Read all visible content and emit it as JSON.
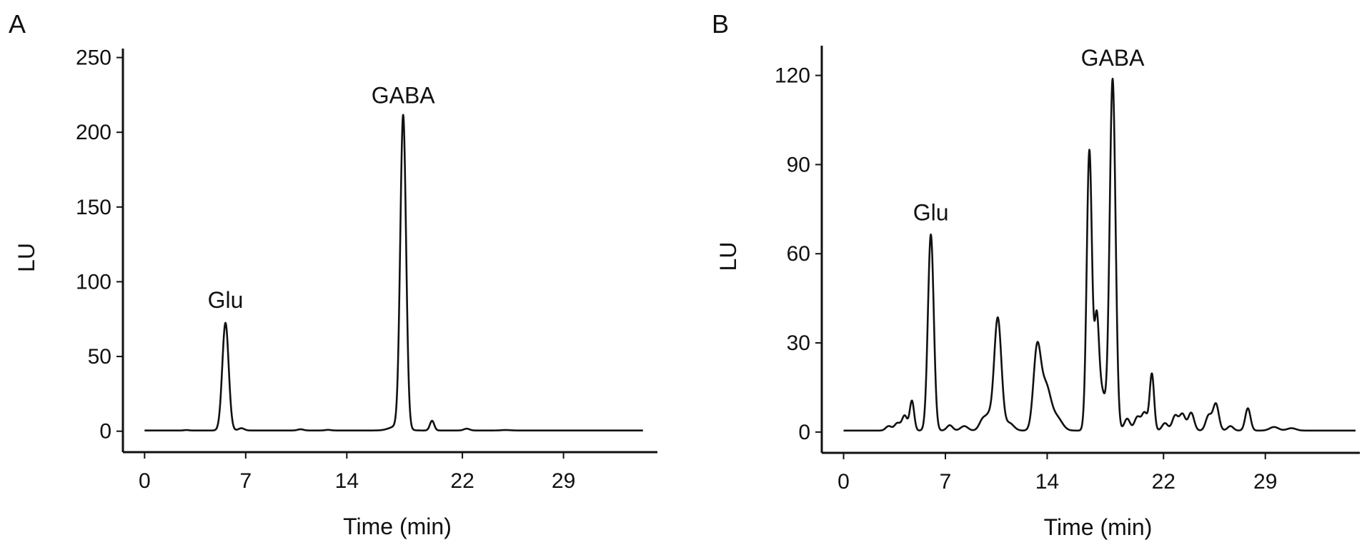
{
  "chart_data": [
    {
      "type": "line",
      "panel_label": "A",
      "xlabel": "Time (min)",
      "ylabel": "LU",
      "xlim": [
        -1.5,
        35.5
      ],
      "ylim": [
        -14,
        256
      ],
      "xticks": [
        0,
        7,
        14,
        22,
        29
      ],
      "yticks": [
        0,
        50,
        100,
        150,
        200,
        250
      ],
      "grid": false,
      "baseline": 0.5,
      "x_end": 34.5,
      "peaks": [
        {
          "t": 2.9,
          "h": 0.3,
          "w": 0.15
        },
        {
          "t": 5.6,
          "h": 72,
          "w": 0.22
        },
        {
          "t": 6.7,
          "h": 1.5,
          "w": 0.2
        },
        {
          "t": 10.8,
          "h": 0.8,
          "w": 0.2
        },
        {
          "t": 12.7,
          "h": 0.4,
          "w": 0.2
        },
        {
          "t": 17.5,
          "h": 3,
          "w": 0.5
        },
        {
          "t": 17.9,
          "h": 209,
          "w": 0.2
        },
        {
          "t": 19.9,
          "h": 6.5,
          "w": 0.15
        },
        {
          "t": 22.3,
          "h": 1.2,
          "w": 0.2
        },
        {
          "t": 25.0,
          "h": 0.3,
          "w": 0.3
        }
      ],
      "annotations": [
        {
          "text": "Glu",
          "x": 5.6,
          "y": 72
        },
        {
          "text": "GABA",
          "x": 17.9,
          "y": 209
        }
      ]
    },
    {
      "type": "line",
      "panel_label": "B",
      "xlabel": "Time (min)",
      "ylabel": "LU",
      "xlim": [
        -1.5,
        35.5
      ],
      "ylim": [
        -7,
        130
      ],
      "xticks": [
        0,
        7,
        14,
        22,
        29
      ],
      "yticks": [
        0,
        30,
        60,
        90,
        120
      ],
      "grid": false,
      "baseline": 0.5,
      "x_end": 35.2,
      "peaks": [
        {
          "t": 3.1,
          "h": 1.5,
          "w": 0.2
        },
        {
          "t": 3.7,
          "h": 2.5,
          "w": 0.2
        },
        {
          "t": 4.2,
          "h": 5,
          "w": 0.18
        },
        {
          "t": 4.7,
          "h": 10,
          "w": 0.15
        },
        {
          "t": 6.0,
          "h": 66,
          "w": 0.2
        },
        {
          "t": 7.3,
          "h": 1.8,
          "w": 0.2
        },
        {
          "t": 8.3,
          "h": 1.5,
          "w": 0.25
        },
        {
          "t": 9.6,
          "h": 4,
          "w": 0.25
        },
        {
          "t": 10.0,
          "h": 3.5,
          "w": 0.2
        },
        {
          "t": 10.6,
          "h": 38,
          "w": 0.25
        },
        {
          "t": 11.4,
          "h": 2.5,
          "w": 0.3
        },
        {
          "t": 13.3,
          "h": 26,
          "w": 0.25
        },
        {
          "t": 13.9,
          "h": 15,
          "w": 0.35
        },
        {
          "t": 14.7,
          "h": 4,
          "w": 0.35
        },
        {
          "t": 16.9,
          "h": 94,
          "w": 0.18
        },
        {
          "t": 17.4,
          "h": 30,
          "w": 0.15
        },
        {
          "t": 17.7,
          "h": 14,
          "w": 0.3
        },
        {
          "t": 18.5,
          "h": 118,
          "w": 0.2
        },
        {
          "t": 19.5,
          "h": 4,
          "w": 0.2
        },
        {
          "t": 20.2,
          "h": 4.5,
          "w": 0.2
        },
        {
          "t": 20.7,
          "h": 6,
          "w": 0.2
        },
        {
          "t": 21.2,
          "h": 19,
          "w": 0.15
        },
        {
          "t": 22.1,
          "h": 2.5,
          "w": 0.2
        },
        {
          "t": 22.8,
          "h": 5,
          "w": 0.2
        },
        {
          "t": 23.3,
          "h": 5.5,
          "w": 0.2
        },
        {
          "t": 23.9,
          "h": 6,
          "w": 0.2
        },
        {
          "t": 25.1,
          "h": 5,
          "w": 0.2
        },
        {
          "t": 25.6,
          "h": 9,
          "w": 0.2
        },
        {
          "t": 26.6,
          "h": 1.5,
          "w": 0.2
        },
        {
          "t": 27.8,
          "h": 7.5,
          "w": 0.18
        },
        {
          "t": 29.6,
          "h": 1.2,
          "w": 0.3
        },
        {
          "t": 30.8,
          "h": 0.8,
          "w": 0.3
        }
      ],
      "annotations": [
        {
          "text": "Glu",
          "x": 6.0,
          "y": 66
        },
        {
          "text": "GABA",
          "x": 18.5,
          "y": 118
        }
      ]
    }
  ]
}
